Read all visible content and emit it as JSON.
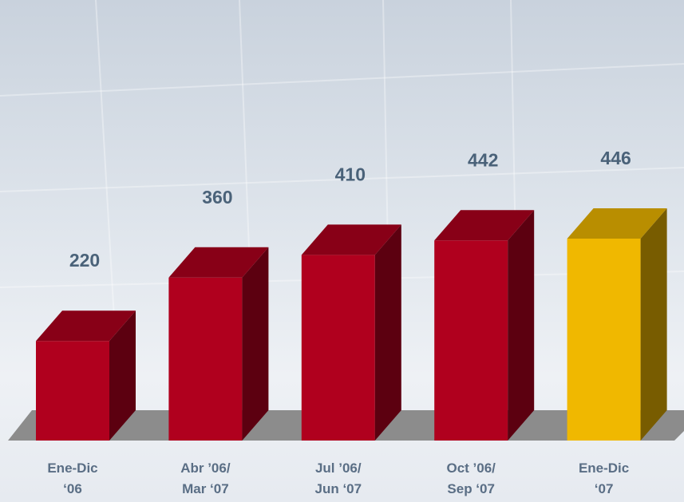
{
  "chart_data": {
    "type": "bar3d",
    "categories": [
      "Ene-Dic\n‘06",
      "Abr ’06/\nMar ‘07",
      "Jul ’06/\nJun ‘07",
      "Oct ’06/\nSep ‘07",
      "Ene-Dic\n‘07"
    ],
    "values": [
      220,
      360,
      410,
      442,
      446
    ],
    "colors": [
      "#b0001e",
      "#b0001e",
      "#b0001e",
      "#b0001e",
      "#f0b800"
    ]
  }
}
